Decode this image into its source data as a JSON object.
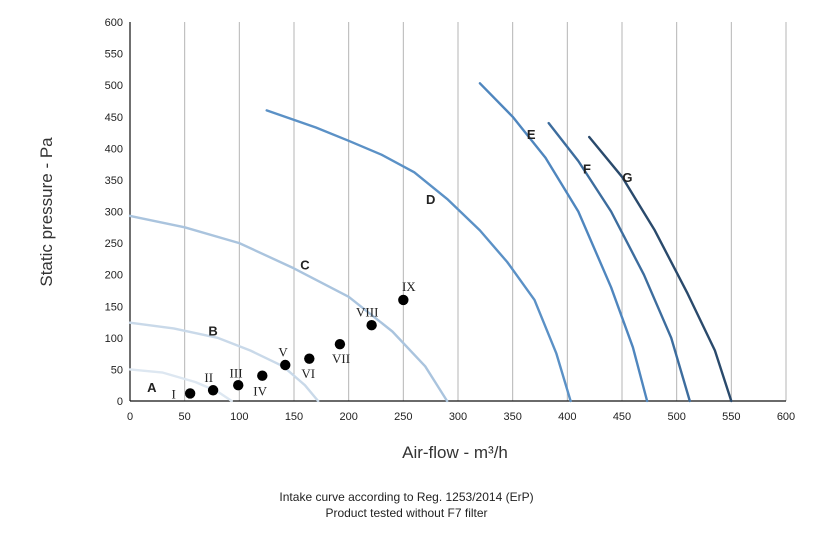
{
  "chart_data": {
    "type": "line",
    "xlabel": "Air-flow - m³/h",
    "ylabel": "Static pressure - Pa",
    "xlim": [
      0,
      600
    ],
    "ylim": [
      0,
      600
    ],
    "x_ticks": [
      0,
      50,
      100,
      150,
      200,
      250,
      300,
      350,
      400,
      450,
      500,
      550,
      600
    ],
    "y_ticks": [
      0,
      50,
      100,
      150,
      200,
      250,
      300,
      350,
      400,
      450,
      500,
      550,
      600
    ],
    "grid": "vertical",
    "series": [
      {
        "name": "A",
        "color": "#dde7f1",
        "points": [
          [
            0,
            50
          ],
          [
            30,
            45
          ],
          [
            60,
            30
          ],
          [
            80,
            15
          ],
          [
            93,
            0
          ]
        ]
      },
      {
        "name": "B",
        "color": "#c9d9e9",
        "points": [
          [
            0,
            124
          ],
          [
            40,
            115
          ],
          [
            80,
            100
          ],
          [
            110,
            80
          ],
          [
            140,
            55
          ],
          [
            160,
            25
          ],
          [
            172,
            0
          ]
        ]
      },
      {
        "name": "C",
        "color": "#aac4de",
        "points": [
          [
            0,
            293
          ],
          [
            50,
            275
          ],
          [
            100,
            250
          ],
          [
            150,
            210
          ],
          [
            200,
            165
          ],
          [
            240,
            110
          ],
          [
            270,
            55
          ],
          [
            290,
            0
          ]
        ]
      },
      {
        "name": "D",
        "color": "#5b91c6",
        "points": [
          [
            125,
            460
          ],
          [
            170,
            433
          ],
          [
            200,
            412
          ],
          [
            230,
            390
          ],
          [
            260,
            362
          ],
          [
            290,
            320
          ],
          [
            320,
            270
          ],
          [
            345,
            220
          ],
          [
            370,
            160
          ],
          [
            390,
            75
          ],
          [
            403,
            0
          ]
        ]
      },
      {
        "name": "E",
        "color": "#4f86be",
        "points": [
          [
            320,
            503
          ],
          [
            350,
            450
          ],
          [
            380,
            385
          ],
          [
            410,
            300
          ],
          [
            440,
            180
          ],
          [
            460,
            85
          ],
          [
            473,
            0
          ]
        ]
      },
      {
        "name": "F",
        "color": "#3d6d9e",
        "points": [
          [
            383,
            440
          ],
          [
            410,
            380
          ],
          [
            440,
            300
          ],
          [
            470,
            200
          ],
          [
            495,
            100
          ],
          [
            512,
            0
          ]
        ]
      },
      {
        "name": "G",
        "color": "#2a4a6c",
        "points": [
          [
            420,
            418
          ],
          [
            450,
            355
          ],
          [
            480,
            270
          ],
          [
            510,
            170
          ],
          [
            535,
            80
          ],
          [
            550,
            0
          ]
        ]
      }
    ],
    "curve_labels": [
      {
        "text": "A",
        "x": 20,
        "y": 22
      },
      {
        "text": "B",
        "x": 76,
        "y": 112
      },
      {
        "text": "C",
        "x": 160,
        "y": 216
      },
      {
        "text": "D",
        "x": 275,
        "y": 320
      },
      {
        "text": "E",
        "x": 367,
        "y": 423
      },
      {
        "text": "F",
        "x": 418,
        "y": 368
      },
      {
        "text": "G",
        "x": 455,
        "y": 355
      }
    ],
    "points": [
      {
        "label": "I",
        "x": 55,
        "y": 12,
        "lx": 40,
        "ly": 12
      },
      {
        "label": "II",
        "x": 76,
        "y": 17,
        "lx": 72,
        "ly": 38
      },
      {
        "label": "III",
        "x": 99,
        "y": 25,
        "lx": 97,
        "ly": 45
      },
      {
        "label": "IV",
        "x": 121,
        "y": 40,
        "lx": 119,
        "ly": 17
      },
      {
        "label": "V",
        "x": 142,
        "y": 57,
        "lx": 140,
        "ly": 78
      },
      {
        "label": "VI",
        "x": 164,
        "y": 67,
        "lx": 163,
        "ly": 44
      },
      {
        "label": "VII",
        "x": 192,
        "y": 90,
        "lx": 193,
        "ly": 68
      },
      {
        "label": "VIII",
        "x": 221,
        "y": 120,
        "lx": 217,
        "ly": 142
      },
      {
        "label": "IX",
        "x": 250,
        "y": 160,
        "lx": 255,
        "ly": 182
      }
    ]
  },
  "caption": {
    "line1": "Intake curve according to Reg. 1253/2014 (ErP)",
    "line2": "Product tested without F7 filter"
  }
}
